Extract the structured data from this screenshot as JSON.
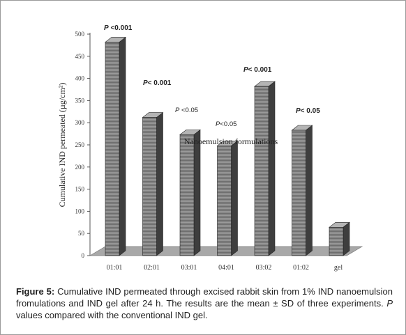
{
  "chart_data": {
    "type": "bar",
    "categories": [
      "01:01",
      "02:01",
      "03:01",
      "04:01",
      "03:02",
      "01:02",
      "gel"
    ],
    "values": [
      482,
      312,
      273,
      248,
      382,
      283,
      64
    ],
    "ylabel": "Cumulative IND permeated (µg/cm²)",
    "xlabel": "Nanoemulsion formulations",
    "ylim": [
      0,
      500
    ],
    "yticks": [
      0,
      50,
      100,
      150,
      200,
      250,
      300,
      350,
      400,
      450,
      500
    ],
    "grid": false,
    "annotations": [
      {
        "category": "01:01",
        "p_italic": "P",
        "rest": " <0.001",
        "bold": true
      },
      {
        "category": "02:01",
        "p_italic": "P",
        "rest": "< 0.001",
        "bold": true
      },
      {
        "category": "03:01",
        "p_italic": "P",
        "rest": " <0.05",
        "bold": false
      },
      {
        "category": "04:01",
        "p_italic": "P",
        "rest": "<0.05",
        "bold": false
      },
      {
        "category": "03:02",
        "p_italic": "P",
        "rest": "< 0.001",
        "bold": true
      },
      {
        "category": "01:02",
        "p_italic": "P",
        "rest": "< 0.05",
        "bold": true
      }
    ],
    "colors": {
      "bar_front": "#8c8c8c",
      "bar_side": "#3e3e3e",
      "bar_top": "#b4b4b4",
      "floor": "#a8a8a8"
    }
  },
  "caption": {
    "label": "Figure 5:",
    "part1": " Cumulative IND permeated through excised rabbit skin from 1% IND nanoemulsion fromulations and IND gel after 24 h. The results are the mean ± SD of three experiments. ",
    "p_letter": "P",
    "part2": " values compared with the conventional IND gel."
  }
}
